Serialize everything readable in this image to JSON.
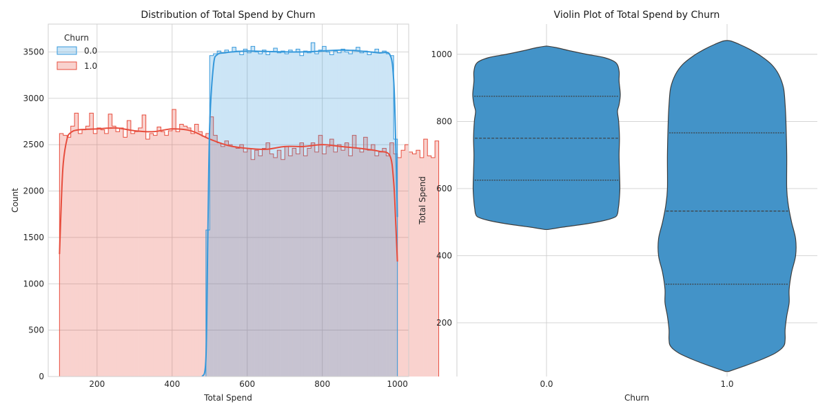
{
  "chart_data": [
    {
      "type": "histogram",
      "title": "Distribution of Total Spend by Churn",
      "xlabel": "Total Spend",
      "ylabel": "Count",
      "xlim": [
        70,
        1030
      ],
      "ylim": [
        0,
        3800
      ],
      "xticks": [
        200,
        400,
        600,
        800,
        1000
      ],
      "yticks": [
        0,
        500,
        1000,
        1500,
        2000,
        2500,
        3000,
        3500
      ],
      "grid": true,
      "legend": {
        "title": "Churn",
        "placement": "top-left"
      },
      "series": [
        {
          "name": "0.0",
          "color": "#3498db",
          "bin_start": 490,
          "bin_width": 10,
          "counts": [
            1580,
            3460,
            3480,
            3510,
            3490,
            3520,
            3500,
            3550,
            3510,
            3470,
            3530,
            3490,
            3560,
            3500,
            3480,
            3520,
            3470,
            3500,
            3540,
            3490,
            3510,
            3480,
            3520,
            3500,
            3530,
            3460,
            3510,
            3490,
            3600,
            3480,
            3520,
            3560,
            3500,
            3470,
            3510,
            3490,
            3530,
            3500,
            3480,
            3520,
            3550,
            3490,
            3510,
            3470,
            3500,
            3530,
            3490,
            3510,
            3480,
            3460,
            2560
          ],
          "kde_x": [
            480,
            490,
            495,
            500,
            510,
            520,
            540,
            560,
            600,
            650,
            700,
            750,
            800,
            850,
            900,
            950,
            980,
            990,
            995,
            1000
          ],
          "kde_y": [
            0,
            200,
            1500,
            2700,
            3350,
            3470,
            3490,
            3500,
            3510,
            3505,
            3500,
            3500,
            3510,
            3520,
            3510,
            3490,
            3470,
            3200,
            2600,
            1720
          ]
        },
        {
          "name": "1.0",
          "color": "#e74c3c",
          "bin_start": 100,
          "bin_width": 10,
          "counts": [
            2620,
            2600,
            2580,
            2700,
            2840,
            2620,
            2660,
            2700,
            2840,
            2620,
            2680,
            2660,
            2620,
            2830,
            2700,
            2640,
            2680,
            2580,
            2760,
            2620,
            2640,
            2680,
            2820,
            2560,
            2620,
            2600,
            2690,
            2640,
            2600,
            2650,
            2880,
            2640,
            2720,
            2700,
            2680,
            2620,
            2720,
            2640,
            2590,
            2620,
            2800,
            2600,
            2520,
            2480,
            2540,
            2500,
            2480,
            2460,
            2500,
            2420,
            2460,
            2340,
            2440,
            2380,
            2460,
            2520,
            2400,
            2360,
            2440,
            2340,
            2480,
            2380,
            2460,
            2400,
            2520,
            2380,
            2460,
            2520,
            2420,
            2600,
            2400,
            2480,
            2560,
            2420,
            2500,
            2440,
            2520,
            2380,
            2600,
            2460,
            2420,
            2580,
            2440,
            2500,
            2380,
            2420,
            2460,
            2380,
            2520,
            2400,
            2360,
            2440,
            2500,
            2420,
            2400,
            2440,
            2360,
            2560,
            2380,
            2360,
            2540
          ],
          "kde_x": [
            100,
            105,
            110,
            120,
            130,
            150,
            200,
            250,
            300,
            350,
            400,
            450,
            500,
            550,
            600,
            650,
            700,
            750,
            800,
            850,
            900,
            950,
            980,
            990,
            995,
            1000
          ],
          "kde_y": [
            1320,
            1900,
            2300,
            2560,
            2630,
            2660,
            2670,
            2680,
            2650,
            2640,
            2670,
            2650,
            2560,
            2490,
            2460,
            2450,
            2480,
            2480,
            2500,
            2480,
            2460,
            2430,
            2380,
            2100,
            1700,
            1240
          ]
        }
      ]
    },
    {
      "type": "violin",
      "title": "Violin Plot of Total Spend by Churn",
      "xlabel": "Churn",
      "ylabel": "Total Spend",
      "categories": [
        "0.0",
        "1.0"
      ],
      "ylim": [
        40,
        1090
      ],
      "yticks": [
        200,
        400,
        600,
        800,
        1000
      ],
      "grid": true,
      "color": "#4393c8",
      "violins": [
        {
          "category": "0.0",
          "quartiles": [
            625,
            750,
            875
          ],
          "profile": [
            [
              478,
              0.02
            ],
            [
              485,
              0.2
            ],
            [
              495,
              0.5
            ],
            [
              505,
              0.72
            ],
            [
              515,
              0.85
            ],
            [
              525,
              0.88
            ],
            [
              540,
              0.89
            ],
            [
              560,
              0.9
            ],
            [
              600,
              0.91
            ],
            [
              650,
              0.905
            ],
            [
              700,
              0.9
            ],
            [
              750,
              0.905
            ],
            [
              800,
              0.895
            ],
            [
              830,
              0.88
            ],
            [
              850,
              0.9
            ],
            [
              880,
              0.915
            ],
            [
              920,
              0.9
            ],
            [
              950,
              0.9
            ],
            [
              975,
              0.86
            ],
            [
              990,
              0.72
            ],
            [
              1000,
              0.5
            ],
            [
              1010,
              0.3
            ],
            [
              1020,
              0.12
            ],
            [
              1024,
              0.02
            ]
          ]
        },
        {
          "category": "1.0",
          "quartiles": [
            315,
            533,
            766
          ]
        }
      ]
    }
  ]
}
